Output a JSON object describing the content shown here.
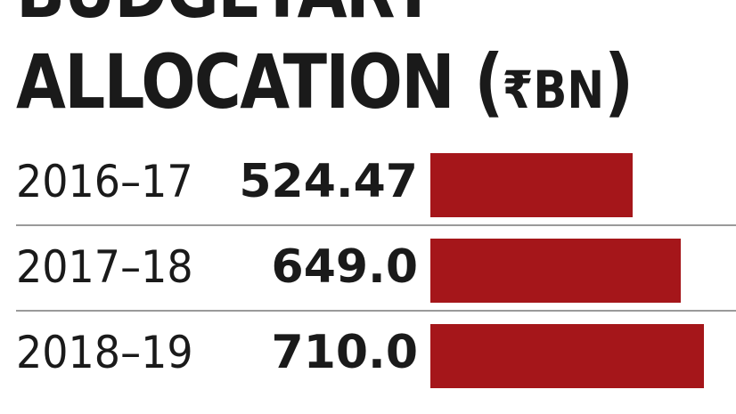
{
  "title": {
    "line1": "BUDGETARY",
    "line2": "ALLOCATION (",
    "unit": "₹BN",
    "close": ")"
  },
  "colors": {
    "bar": "#a5161a",
    "text": "#1a1a1a",
    "divider": "#9a9a9a"
  },
  "chart_data": {
    "type": "bar",
    "orientation": "horizontal",
    "title": "BUDGETARY ALLOCATION (₹BN)",
    "categories": [
      "2016–17",
      "2017–18",
      "2018–19"
    ],
    "values": [
      524.47,
      649.0,
      710.0
    ],
    "value_labels": [
      "524.47",
      "649.0",
      "710.0"
    ],
    "xlim": [
      0,
      710.0
    ],
    "grid": false,
    "legend": "none"
  }
}
